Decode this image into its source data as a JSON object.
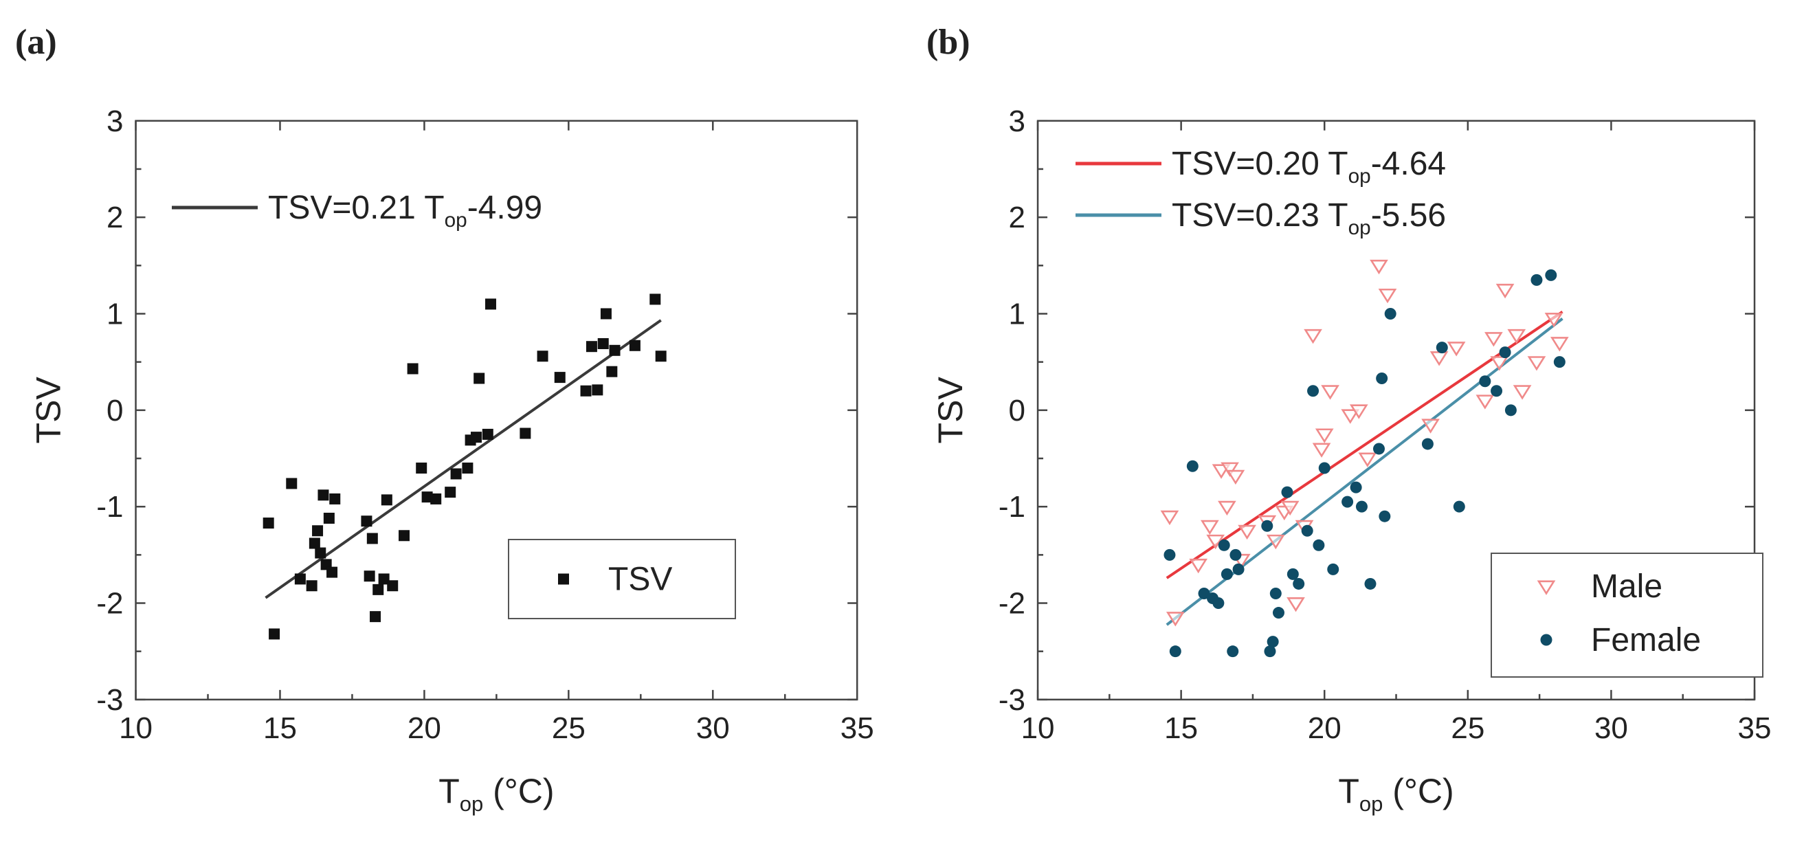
{
  "chart_data": [
    {
      "type": "scatter",
      "panel_label": "(a)",
      "xlabel": {
        "main": "T",
        "sub": "op",
        "rest": " (°C)"
      },
      "ylabel": "TSV",
      "xlim": [
        10,
        35
      ],
      "ylim": [
        -3,
        3
      ],
      "xticks": [
        "10",
        "15",
        "20",
        "25",
        "30",
        "35"
      ],
      "yticks": [
        "-3",
        "-2",
        "-1",
        "0",
        "1",
        "2",
        "3"
      ],
      "legend": {
        "placement": "lower-right",
        "entries": [
          "TSV"
        ]
      },
      "fit_line": {
        "label": {
          "main": "TSV=0.21 T",
          "sub": "op",
          "rest": "-4.99"
        },
        "slope": 0.21,
        "intercept": -4.99,
        "x_range": [
          14.5,
          28.2
        ],
        "color": "#3a3a3a"
      },
      "series": [
        {
          "name": "TSV",
          "marker": "square",
          "color": "#111111",
          "points": [
            [
              14.6,
              -1.17
            ],
            [
              14.8,
              -2.32
            ],
            [
              15.4,
              -0.76
            ],
            [
              15.7,
              -1.75
            ],
            [
              16.1,
              -1.82
            ],
            [
              16.2,
              -1.38
            ],
            [
              16.3,
              -1.25
            ],
            [
              16.4,
              -1.48
            ],
            [
              16.5,
              -0.88
            ],
            [
              16.6,
              -1.6
            ],
            [
              16.7,
              -1.12
            ],
            [
              16.8,
              -1.68
            ],
            [
              16.9,
              -0.92
            ],
            [
              18.0,
              -1.15
            ],
            [
              18.1,
              -1.72
            ],
            [
              18.2,
              -1.33
            ],
            [
              18.3,
              -2.14
            ],
            [
              18.4,
              -1.86
            ],
            [
              18.6,
              -1.75
            ],
            [
              18.7,
              -0.93
            ],
            [
              18.9,
              -1.82
            ],
            [
              19.3,
              -1.3
            ],
            [
              19.6,
              0.43
            ],
            [
              19.9,
              -0.6
            ],
            [
              20.1,
              -0.9
            ],
            [
              20.4,
              -0.92
            ],
            [
              20.9,
              -0.85
            ],
            [
              21.1,
              -0.66
            ],
            [
              21.5,
              -0.6
            ],
            [
              21.6,
              -0.31
            ],
            [
              21.8,
              -0.28
            ],
            [
              21.9,
              0.33
            ],
            [
              22.2,
              -0.25
            ],
            [
              22.3,
              1.1
            ],
            [
              23.5,
              -0.24
            ],
            [
              24.1,
              0.56
            ],
            [
              24.7,
              0.34
            ],
            [
              25.6,
              0.2
            ],
            [
              25.8,
              0.66
            ],
            [
              26.0,
              0.21
            ],
            [
              26.2,
              0.69
            ],
            [
              26.3,
              1.0
            ],
            [
              26.5,
              0.4
            ],
            [
              26.6,
              0.62
            ],
            [
              27.3,
              0.67
            ],
            [
              28.0,
              1.15
            ],
            [
              28.2,
              0.56
            ]
          ]
        }
      ]
    },
    {
      "type": "scatter",
      "panel_label": "(b)",
      "xlabel": {
        "main": "T",
        "sub": "op",
        "rest": " (°C)"
      },
      "ylabel": "TSV",
      "xlim": [
        10,
        35
      ],
      "ylim": [
        -3,
        3
      ],
      "xticks": [
        "10",
        "15",
        "20",
        "25",
        "30",
        "35"
      ],
      "yticks": [
        "-3",
        "-2",
        "-1",
        "0",
        "1",
        "2",
        "3"
      ],
      "legend": {
        "placement": "lower-right",
        "entries": [
          "Male",
          "Female"
        ]
      },
      "fit_lines": [
        {
          "label": {
            "main": "TSV=0.20 T",
            "sub": "op",
            "rest": "-4.64"
          },
          "slope": 0.2,
          "intercept": -4.64,
          "x_range": [
            14.5,
            28.3
          ],
          "color": "#e8383d"
        },
        {
          "label": {
            "main": "TSV=0.23 T",
            "sub": "op",
            "rest": "-5.56"
          },
          "slope": 0.23,
          "intercept": -5.56,
          "x_range": [
            14.5,
            28.3
          ],
          "color": "#4a8fa8"
        }
      ],
      "series": [
        {
          "name": "Male",
          "marker": "triangle-down-open",
          "color": "#f08a8a",
          "points": [
            [
              14.6,
              -1.1
            ],
            [
              14.8,
              -2.15
            ],
            [
              15.6,
              -1.6
            ],
            [
              16.0,
              -1.2
            ],
            [
              16.2,
              -1.35
            ],
            [
              16.4,
              -0.62
            ],
            [
              16.6,
              -1.0
            ],
            [
              16.7,
              -0.6
            ],
            [
              16.9,
              -0.68
            ],
            [
              17.1,
              -1.55
            ],
            [
              17.3,
              -1.25
            ],
            [
              18.0,
              -1.15
            ],
            [
              18.3,
              -1.35
            ],
            [
              18.6,
              -1.05
            ],
            [
              18.8,
              -1.0
            ],
            [
              19.0,
              -2.0
            ],
            [
              19.3,
              -1.2
            ],
            [
              19.6,
              0.78
            ],
            [
              19.9,
              -0.4
            ],
            [
              20.0,
              -0.25
            ],
            [
              20.2,
              0.2
            ],
            [
              20.9,
              -0.05
            ],
            [
              21.2,
              0.0
            ],
            [
              21.5,
              -0.5
            ],
            [
              21.9,
              1.5
            ],
            [
              22.2,
              1.2
            ],
            [
              23.7,
              -0.15
            ],
            [
              24.0,
              0.55
            ],
            [
              24.6,
              0.65
            ],
            [
              25.6,
              0.1
            ],
            [
              25.9,
              0.75
            ],
            [
              26.1,
              0.5
            ],
            [
              26.3,
              1.25
            ],
            [
              26.7,
              0.78
            ],
            [
              26.9,
              0.2
            ],
            [
              27.4,
              0.5
            ],
            [
              28.0,
              0.95
            ],
            [
              28.2,
              0.7
            ]
          ]
        },
        {
          "name": "Female",
          "marker": "dot",
          "color": "#0f4c66",
          "points": [
            [
              14.6,
              -1.5
            ],
            [
              14.8,
              -2.5
            ],
            [
              15.4,
              -0.58
            ],
            [
              15.8,
              -1.9
            ],
            [
              16.1,
              -1.95
            ],
            [
              16.3,
              -2.0
            ],
            [
              16.5,
              -1.4
            ],
            [
              16.6,
              -1.7
            ],
            [
              16.8,
              -2.5
            ],
            [
              16.9,
              -1.5
            ],
            [
              17.0,
              -1.65
            ],
            [
              18.0,
              -1.2
            ],
            [
              18.1,
              -2.5
            ],
            [
              18.2,
              -2.4
            ],
            [
              18.3,
              -1.9
            ],
            [
              18.4,
              -2.1
            ],
            [
              18.7,
              -0.85
            ],
            [
              18.9,
              -1.7
            ],
            [
              19.1,
              -1.8
            ],
            [
              19.4,
              -1.25
            ],
            [
              19.6,
              0.2
            ],
            [
              19.8,
              -1.4
            ],
            [
              20.0,
              -0.6
            ],
            [
              20.3,
              -1.65
            ],
            [
              20.8,
              -0.95
            ],
            [
              21.1,
              -0.8
            ],
            [
              21.3,
              -1.0
            ],
            [
              21.6,
              -1.8
            ],
            [
              21.9,
              -0.4
            ],
            [
              22.0,
              0.33
            ],
            [
              22.1,
              -1.1
            ],
            [
              22.3,
              1.0
            ],
            [
              23.6,
              -0.35
            ],
            [
              24.1,
              0.65
            ],
            [
              24.7,
              -1.0
            ],
            [
              25.6,
              0.3
            ],
            [
              26.0,
              0.2
            ],
            [
              26.3,
              0.6
            ],
            [
              26.5,
              0.0
            ],
            [
              27.4,
              1.35
            ],
            [
              27.9,
              1.4
            ],
            [
              28.2,
              0.5
            ]
          ]
        }
      ]
    }
  ]
}
